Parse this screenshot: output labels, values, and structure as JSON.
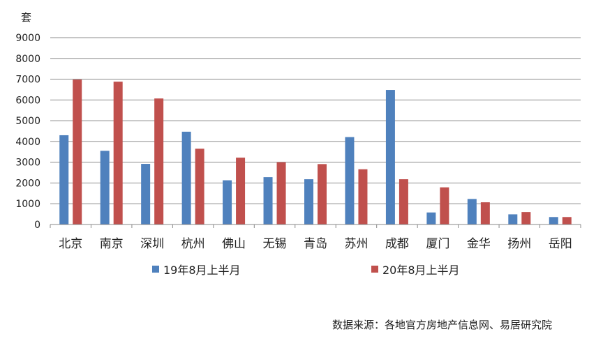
{
  "chart_data": {
    "type": "bar",
    "ylabel": "套",
    "ylim": [
      0,
      9000
    ],
    "yticks": [
      0,
      1000,
      2000,
      3000,
      4000,
      5000,
      6000,
      7000,
      8000,
      9000
    ],
    "grid": true,
    "legend_position": "bottom",
    "categories": [
      "北京",
      "南京",
      "深圳",
      "杭州",
      "佛山",
      "无锡",
      "青岛",
      "苏州",
      "成都",
      "厦门",
      "金华",
      "扬州",
      "岳阳"
    ],
    "series": [
      {
        "name": "19年8月上半月",
        "color": "#4F81BD",
        "values": [
          4300,
          3550,
          2920,
          4470,
          2130,
          2280,
          2180,
          4210,
          6480,
          580,
          1230,
          490,
          360
        ]
      },
      {
        "name": "20年8月上半月",
        "color": "#C0504D",
        "values": [
          6980,
          6880,
          6070,
          3650,
          3220,
          3000,
          2910,
          2660,
          2180,
          1790,
          1070,
          600,
          360
        ]
      }
    ]
  },
  "source_note": "数据来源：各地官方房地产信息网、易居研究院"
}
